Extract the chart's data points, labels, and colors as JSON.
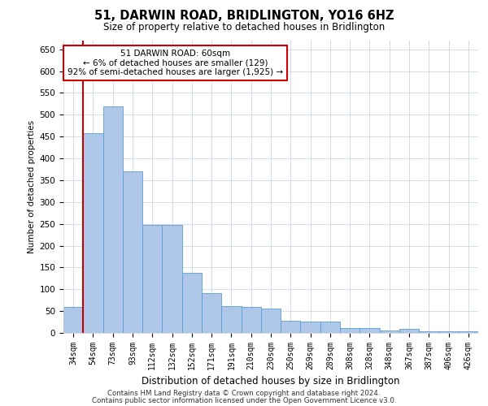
{
  "title": "51, DARWIN ROAD, BRIDLINGTON, YO16 6HZ",
  "subtitle": "Size of property relative to detached houses in Bridlington",
  "xlabel": "Distribution of detached houses by size in Bridlington",
  "ylabel": "Number of detached properties",
  "bar_color": "#aec6e8",
  "bar_edge_color": "#5a9fd4",
  "categories": [
    "34sqm",
    "54sqm",
    "73sqm",
    "93sqm",
    "112sqm",
    "132sqm",
    "152sqm",
    "171sqm",
    "191sqm",
    "210sqm",
    "230sqm",
    "250sqm",
    "269sqm",
    "289sqm",
    "308sqm",
    "328sqm",
    "348sqm",
    "367sqm",
    "387sqm",
    "406sqm",
    "426sqm"
  ],
  "values": [
    60,
    458,
    520,
    370,
    248,
    248,
    138,
    92,
    62,
    60,
    55,
    27,
    26,
    26,
    11,
    12,
    6,
    9,
    4,
    4,
    3
  ],
  "ylim": [
    0,
    670
  ],
  "yticks": [
    0,
    50,
    100,
    150,
    200,
    250,
    300,
    350,
    400,
    450,
    500,
    550,
    600,
    650
  ],
  "property_line_x": 1,
  "annotation_text": "51 DARWIN ROAD: 60sqm\n← 6% of detached houses are smaller (129)\n92% of semi-detached houses are larger (1,925) →",
  "annotation_box_color": "#ffffff",
  "annotation_box_edge": "#cc0000",
  "line_color": "#cc0000",
  "footer1": "Contains HM Land Registry data © Crown copyright and database right 2024.",
  "footer2": "Contains public sector information licensed under the Open Government Licence v3.0.",
  "background_color": "#ffffff",
  "grid_color": "#ccd6e8"
}
